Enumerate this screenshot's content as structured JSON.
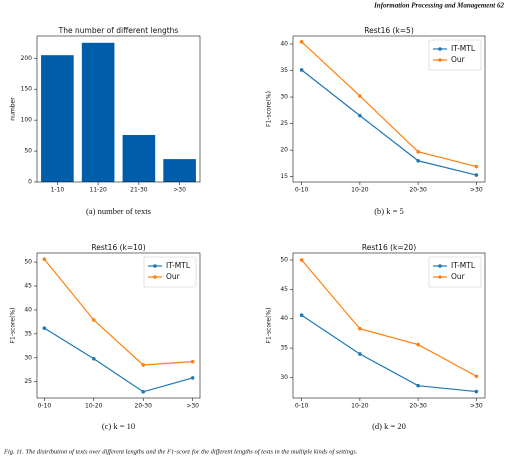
{
  "header": "Information Processing and Management 62",
  "footer": "Fig. 11. The distribution of texts over different lengths and the F1-score for the different lengths of texts in the multiple kinds of settings.",
  "chart_data": [
    {
      "type": "bar",
      "title": "The number of different lengths",
      "caption": "(a) number of texts",
      "y_label": "number",
      "categories": [
        "1-10",
        "11-20",
        "21-30",
        ">30"
      ],
      "values": [
        205,
        225,
        76,
        37
      ],
      "color": "#005daa",
      "ylim": [
        0,
        236
      ],
      "yticks": [
        0,
        50,
        100,
        150,
        200
      ]
    },
    {
      "type": "line",
      "title": "Rest16 (k=5)",
      "caption": "(b) k = 5",
      "y_label": "F1-score(%)",
      "categories": [
        "0-10",
        "10-20",
        "20-30",
        ">30"
      ],
      "legend": "upper right",
      "series": [
        {
          "name": "IT-MTL",
          "color": "#1f77b4",
          "values": [
            35.1,
            26.5,
            18.0,
            15.3
          ]
        },
        {
          "name": "Our",
          "color": "#ff7f0e",
          "values": [
            40.4,
            30.2,
            19.7,
            16.9
          ]
        }
      ],
      "ylim": [
        14,
        41.5
      ],
      "yticks": [
        15,
        20,
        25,
        30,
        35,
        40
      ]
    },
    {
      "type": "line",
      "title": "Rest16 (k=10)",
      "caption": "(c) k = 10",
      "y_label": "F1-score(%)",
      "categories": [
        "0-10",
        "10-20",
        "20-30",
        ">30"
      ],
      "legend": "upper right",
      "series": [
        {
          "name": "IT-MTL",
          "color": "#1f77b4",
          "values": [
            36.2,
            29.8,
            22.9,
            25.8
          ]
        },
        {
          "name": "Our",
          "color": "#ff7f0e",
          "values": [
            50.6,
            37.9,
            28.5,
            29.2
          ]
        }
      ],
      "ylim": [
        21.6,
        51.9
      ],
      "yticks": [
        25,
        30,
        35,
        40,
        45,
        50
      ]
    },
    {
      "type": "line",
      "title": "Rest16 (k=20)",
      "caption": "(d) k = 20",
      "y_label": "F1-score(%)",
      "categories": [
        "0-10",
        "10-20",
        "20-30",
        ">30"
      ],
      "legend": "upper right",
      "series": [
        {
          "name": "IT-MTL",
          "color": "#1f77b4",
          "values": [
            40.6,
            34.0,
            28.6,
            27.6
          ]
        },
        {
          "name": "Our",
          "color": "#ff7f0e",
          "values": [
            50.0,
            38.3,
            35.6,
            30.2
          ]
        }
      ],
      "ylim": [
        26.5,
        51.2
      ],
      "yticks": [
        30,
        35,
        40,
        45,
        50
      ]
    }
  ]
}
